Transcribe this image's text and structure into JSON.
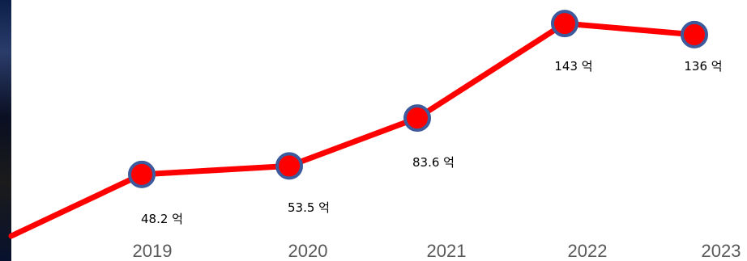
{
  "chart_data": {
    "type": "line",
    "title": "",
    "xlabel": "",
    "ylabel": "",
    "categories": [
      "2019",
      "2020",
      "2021",
      "2022",
      "2023"
    ],
    "series": [
      {
        "values": [
          48.2,
          53.5,
          83.6,
          143,
          136
        ],
        "data_labels": [
          "48.2 억",
          "53.5 억",
          "83.6 억",
          "143 억",
          "136 억"
        ]
      }
    ],
    "unit": "억",
    "grid": false,
    "legend": "none",
    "colors": {
      "line": "#ff0000",
      "marker_fill": "#ff0000",
      "marker_stroke": "#3d5a9c",
      "tick_text": "#595959",
      "label_text": "#000000"
    }
  }
}
